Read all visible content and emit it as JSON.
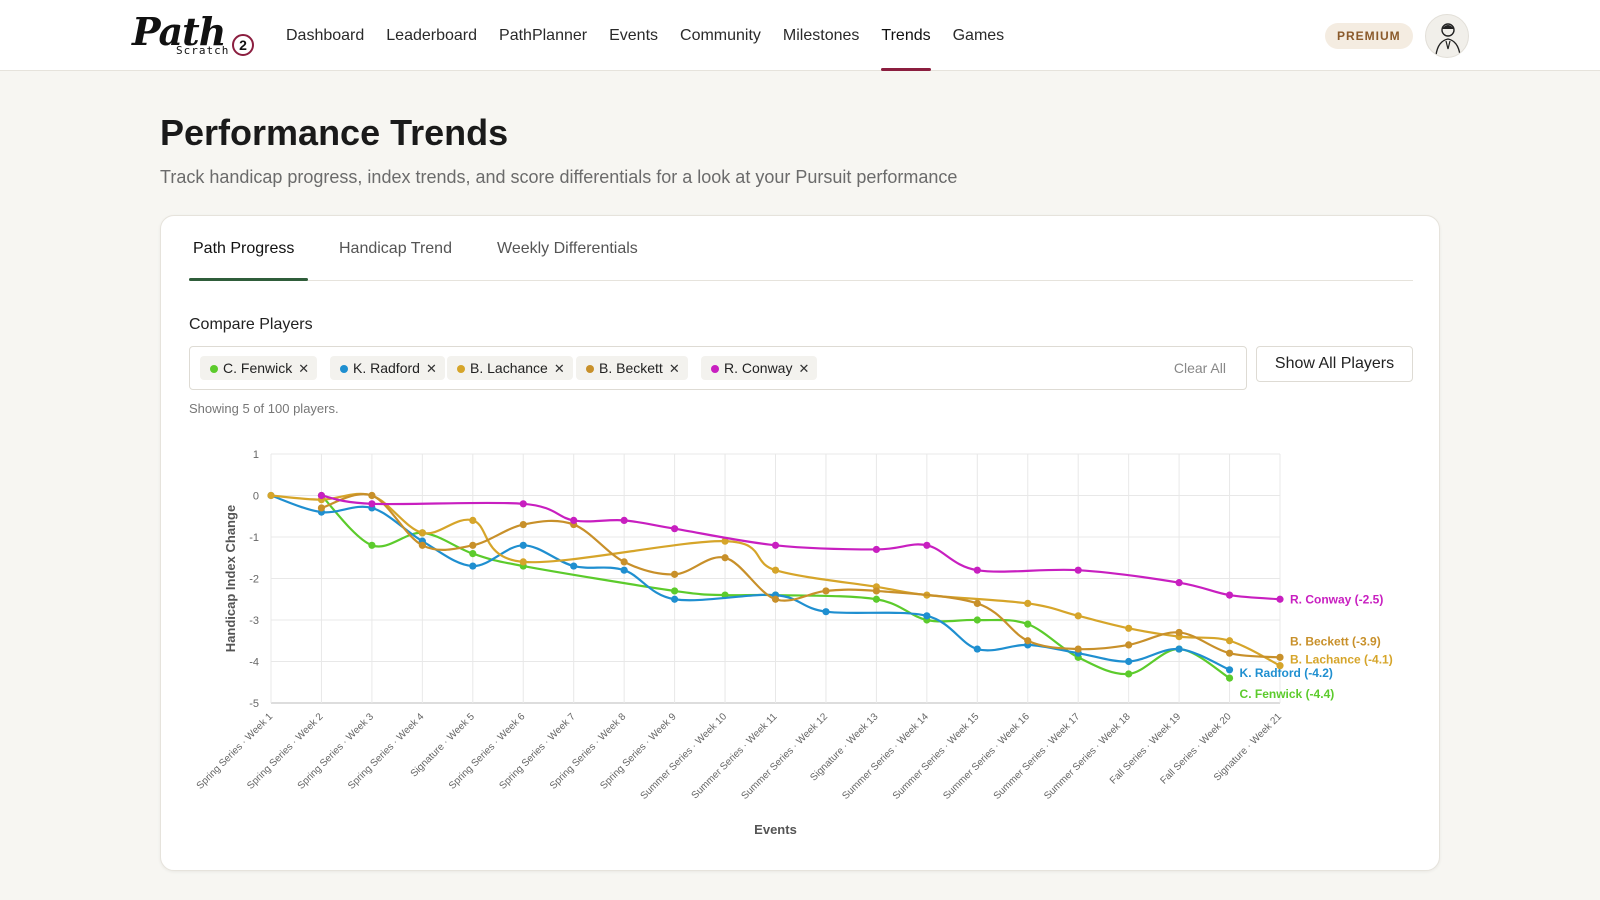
{
  "header": {
    "logo_text": "Path",
    "logo_sub": "Scratch",
    "logo_badge": "2",
    "nav": [
      "Dashboard",
      "Leaderboard",
      "PathPlanner",
      "Events",
      "Community",
      "Milestones",
      "Trends",
      "Games"
    ],
    "active_nav": "Trends",
    "premium_label": "PREMIUM",
    "avatar_icon": "user-avatar-icon"
  },
  "page": {
    "title": "Performance Trends",
    "subtitle": "Track handicap progress, index trends, and score differentials for a look at your Pursuit performance"
  },
  "tabs": [
    {
      "label": "Path Progress",
      "active": true
    },
    {
      "label": "Handicap Trend",
      "active": false
    },
    {
      "label": "Weekly Differentials",
      "active": false
    }
  ],
  "compare": {
    "label": "Compare Players",
    "chips": [
      {
        "name": "C. Fenwick",
        "color": "#5ccb2c"
      },
      {
        "name": "K. Radford",
        "color": "#1f8fd0"
      },
      {
        "name": "B. Lachance",
        "color": "#d6a52a"
      },
      {
        "name": "B. Beckett",
        "color": "#c8902a"
      },
      {
        "name": "R. Conway",
        "color": "#c81fc0"
      }
    ],
    "remove_glyph": "✕",
    "clear_all": "Clear All",
    "show_all": "Show All Players",
    "showing_text": "Showing 5 of 100 players."
  },
  "chart_data": {
    "type": "line",
    "title": "",
    "xlabel": "Events",
    "ylabel": "Handicap Index Change",
    "ylim": [
      -5,
      1
    ],
    "yticks": [
      1,
      0,
      -1,
      -2,
      -3,
      -4,
      -5
    ],
    "grid": true,
    "legend": "end-labels",
    "categories": [
      "Spring Series · Week 1",
      "Spring Series · Week 2",
      "Spring Series · Week 3",
      "Spring Series · Week 4",
      "Signature · Week 5",
      "Spring Series · Week 6",
      "Spring Series · Week 7",
      "Spring Series · Week 8",
      "Spring Series · Week 9",
      "Summer Series · Week 10",
      "Summer Series · Week 11",
      "Summer Series · Week 12",
      "Signature · Week 13",
      "Summer Series · Week 14",
      "Summer Series · Week 15",
      "Summer Series · Week 16",
      "Summer Series · Week 17",
      "Summer Series · Week 18",
      "Fall Series · Week 19",
      "Fall Series · Week 20",
      "Signature · Week 21"
    ],
    "series": [
      {
        "name": "C. Fenwick",
        "end_label": "C. Fenwick (-4.4)",
        "color": "#5ccb2c",
        "values": [
          null,
          0.0,
          -1.2,
          -0.9,
          -1.4,
          -1.7,
          null,
          null,
          -2.3,
          -2.4,
          -2.4,
          null,
          -2.5,
          -3.0,
          -3.0,
          -3.1,
          -3.9,
          -4.3,
          -3.7,
          -4.4,
          null
        ]
      },
      {
        "name": "K. Radford",
        "end_label": "K. Radford (-4.2)",
        "color": "#1f8fd0",
        "values": [
          0.0,
          -0.4,
          -0.3,
          -1.1,
          -1.7,
          -1.2,
          -1.7,
          -1.8,
          -2.5,
          null,
          -2.4,
          -2.8,
          null,
          -2.9,
          -3.7,
          -3.6,
          -3.8,
          -4.0,
          -3.7,
          -4.2,
          null
        ]
      },
      {
        "name": "B. Lachance",
        "end_label": "B. Lachance (-4.1)",
        "color": "#d6a52a",
        "values": [
          0.0,
          -0.1,
          0.0,
          -0.9,
          -0.6,
          -1.6,
          null,
          null,
          null,
          -1.1,
          -1.8,
          null,
          -2.2,
          -2.4,
          null,
          -2.6,
          -2.9,
          -3.2,
          -3.4,
          -3.5,
          -4.1
        ]
      },
      {
        "name": "B. Beckett",
        "end_label": "B. Beckett (-3.9)",
        "color": "#c8902a",
        "values": [
          null,
          -0.3,
          0.0,
          -1.2,
          -1.2,
          -0.7,
          -0.7,
          -1.6,
          -1.9,
          -1.5,
          -2.5,
          -2.3,
          -2.3,
          null,
          -2.6,
          -3.5,
          -3.7,
          -3.6,
          -3.3,
          -3.8,
          -3.9
        ]
      },
      {
        "name": "R. Conway",
        "end_label": "R. Conway (-2.5)",
        "color": "#c81fc0",
        "values": [
          null,
          0.0,
          -0.2,
          null,
          null,
          -0.2,
          -0.6,
          -0.6,
          -0.8,
          null,
          -1.2,
          null,
          -1.3,
          -1.2,
          -1.8,
          null,
          -1.8,
          null,
          -2.1,
          -2.4,
          -2.5
        ]
      }
    ]
  }
}
